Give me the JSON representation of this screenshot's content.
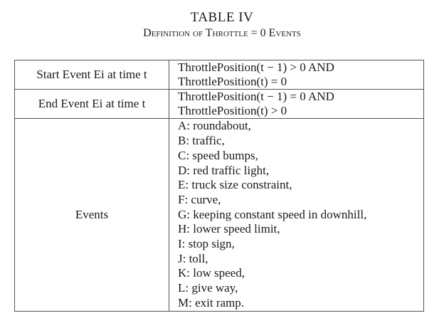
{
  "caption": {
    "table_label": "TABLE IV",
    "title": "Definition of Throttle = 0 Events"
  },
  "rows": {
    "start": {
      "label": "Start Event Ei at time t",
      "line1": "ThrottlePosition(t − 1) > 0 AND",
      "line2": "ThrottlePosition(t) = 0"
    },
    "end": {
      "label": "End Event Ei at time t",
      "line1": "ThrottlePosition(t − 1) = 0 AND",
      "line2": "ThrottlePosition(t) > 0"
    },
    "events": {
      "label": "Events",
      "items": [
        "A: roundabout,",
        "B: traffic,",
        "C: speed bumps,",
        "D: red traffic light,",
        "E: truck size constraint,",
        "F: curve,",
        "G: keeping constant speed in downhill,",
        "H: lower speed limit,",
        "I: stop sign,",
        "J: toll,",
        "K: low speed,",
        "L: give way,",
        "M: exit ramp."
      ]
    }
  }
}
